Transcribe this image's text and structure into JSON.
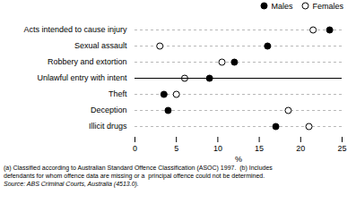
{
  "chart_data": {
    "type": "dot",
    "orientation": "horizontal",
    "categories": [
      "Illicit drugs",
      "Deception",
      "Theft",
      "Unlawful entry with intent",
      "Robbery and extortion",
      "Sexual assault",
      "Acts intended to cause injury"
    ],
    "series": [
      {
        "name": "Males",
        "color": "#000000",
        "marker": "circle",
        "values": [
          17.0,
          4.0,
          3.5,
          9.0,
          12.0,
          16.0,
          23.5
        ]
      },
      {
        "name": "Females",
        "color": "#000000",
        "marker": "open_circle",
        "values": [
          21.0,
          18.5,
          5.0,
          6.0,
          10.5,
          3.0,
          21.5
        ]
      }
    ],
    "xlabel": "%",
    "xlim": [
      0,
      25
    ],
    "xticks": [
      0,
      5,
      10,
      15,
      20,
      25
    ],
    "grid": true,
    "legend": "right",
    "annotations": [
      "(a) Classified according to Australian Standard Offence Classification (ASOC) 1997.  (b) Includes",
      "defendants for whom offence data are missing or a  principal offence could not be determined."
    ],
    "source": "Source: ABS Criminal Courts, Australia (4513.0)."
  }
}
